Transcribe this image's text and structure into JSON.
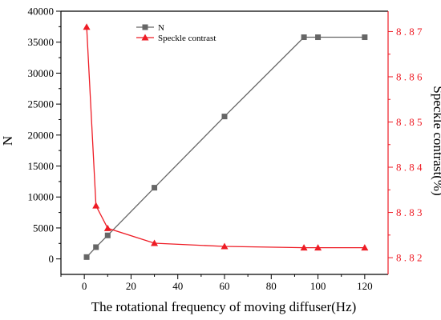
{
  "chart_data": {
    "type": "line",
    "xlabel": "The rotational frequency of moving diffuser(Hz)",
    "ylabel_left": "N",
    "ylabel_right": "Speckle contrast(%)",
    "xlim": [
      -10,
      130
    ],
    "xticks": [
      0,
      20,
      40,
      60,
      80,
      100,
      120
    ],
    "ylim_left": [
      -2500,
      40000
    ],
    "yticks_left": [
      0,
      5000,
      10000,
      15000,
      20000,
      25000,
      30000,
      35000,
      40000
    ],
    "ylim_right": [
      8.8163,
      8.8745
    ],
    "yticks_right": [
      8.82,
      8.83,
      8.84,
      8.85,
      8.86,
      8.87
    ],
    "legend_position": "top-center",
    "series": [
      {
        "name": "N",
        "axis": "left",
        "color": "#666666",
        "marker": "square",
        "x": [
          1,
          5,
          10,
          30,
          60,
          94,
          100,
          120
        ],
        "y": [
          300,
          1900,
          3800,
          11500,
          23000,
          35800,
          35800,
          35800
        ]
      },
      {
        "name": "Speckle contrast",
        "axis": "right",
        "color": "#ee1c25",
        "marker": "triangle",
        "x": [
          1,
          5,
          10,
          30,
          60,
          94,
          100,
          120
        ],
        "y": [
          8.871,
          8.8315,
          8.8265,
          8.8232,
          8.8225,
          8.8222,
          8.8222,
          8.8222
        ]
      }
    ]
  }
}
